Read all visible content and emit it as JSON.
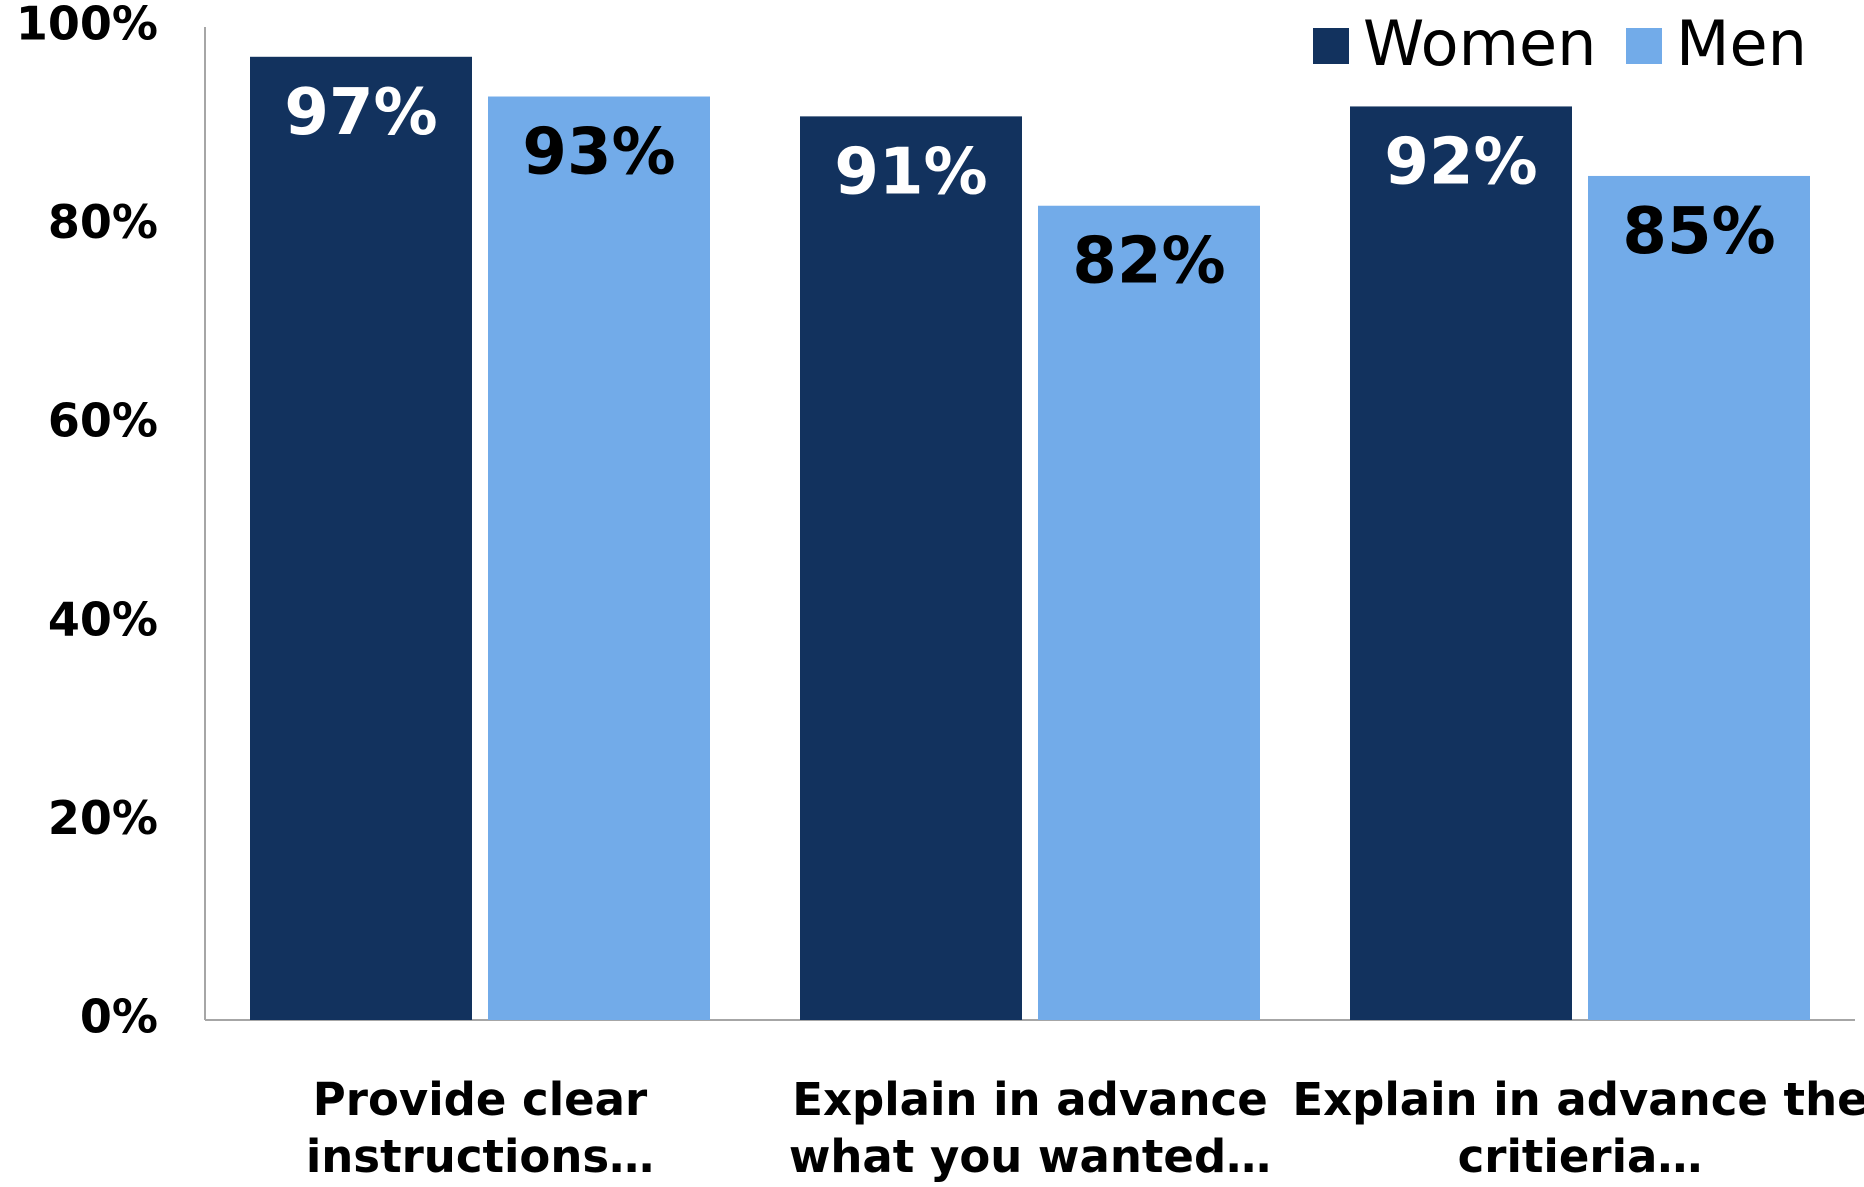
{
  "chart_data": {
    "type": "bar",
    "categories": [
      [
        "Provide clear",
        "instructions…"
      ],
      [
        "Explain in advance",
        "what you wanted…"
      ],
      [
        "Explain in advance the",
        "critieria…"
      ]
    ],
    "series": [
      {
        "name": "Women",
        "values": [
          97,
          91,
          92
        ],
        "labels": [
          "97%",
          "91%",
          "92%"
        ],
        "color": "#12325e",
        "label_color": "#ffffff"
      },
      {
        "name": "Men",
        "values": [
          93,
          82,
          85
        ],
        "labels": [
          "93%",
          "82%",
          "85%"
        ],
        "color": "#72abe9",
        "label_color": "#000000"
      }
    ],
    "yticks": [
      {
        "value": 0,
        "label": "0%"
      },
      {
        "value": 20,
        "label": "20%"
      },
      {
        "value": 40,
        "label": "40%"
      },
      {
        "value": 60,
        "label": "60%"
      },
      {
        "value": 80,
        "label": "80%"
      },
      {
        "value": 100,
        "label": "100%"
      }
    ],
    "ylim": [
      0,
      100
    ],
    "title": "",
    "xlabel": "",
    "ylabel": "",
    "grid": false,
    "legend_position": "top-right",
    "axis_color": "#a6a6a6"
  }
}
